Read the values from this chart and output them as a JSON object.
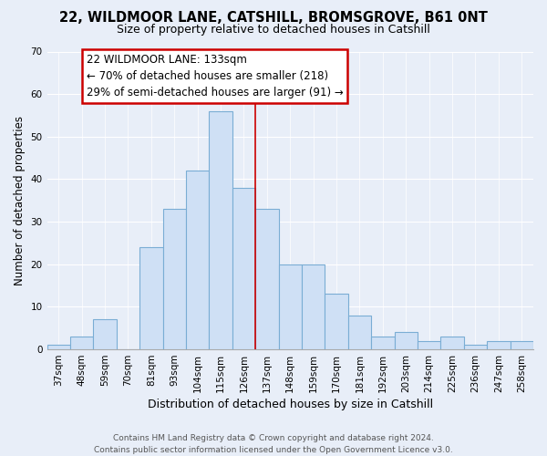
{
  "title1": "22, WILDMOOR LANE, CATSHILL, BROMSGROVE, B61 0NT",
  "title2": "Size of property relative to detached houses in Catshill",
  "xlabel": "Distribution of detached houses by size in Catshill",
  "ylabel": "Number of detached properties",
  "bin_labels": [
    "37sqm",
    "48sqm",
    "59sqm",
    "70sqm",
    "81sqm",
    "93sqm",
    "104sqm",
    "115sqm",
    "126sqm",
    "137sqm",
    "148sqm",
    "159sqm",
    "170sqm",
    "181sqm",
    "192sqm",
    "203sqm",
    "214sqm",
    "225sqm",
    "236sqm",
    "247sqm",
    "258sqm"
  ],
  "bar_heights": [
    1,
    3,
    7,
    0,
    24,
    33,
    42,
    56,
    38,
    33,
    20,
    20,
    13,
    8,
    3,
    4,
    2,
    3,
    1,
    2,
    2
  ],
  "bar_color": "#cfe0f5",
  "bar_edge_color": "#7aadd4",
  "vline_color": "#cc0000",
  "vline_x": 8.5,
  "annotation_title": "22 WILDMOOR LANE: 133sqm",
  "annotation_line1": "← 70% of detached houses are smaller (218)",
  "annotation_line2": "29% of semi-detached houses are larger (91) →",
  "annotation_box_facecolor": "#ffffff",
  "annotation_box_edgecolor": "#cc0000",
  "ylim": [
    0,
    70
  ],
  "yticks": [
    0,
    10,
    20,
    30,
    40,
    50,
    60,
    70
  ],
  "footnote1": "Contains HM Land Registry data © Crown copyright and database right 2024.",
  "footnote2": "Contains public sector information licensed under the Open Government Licence v3.0.",
  "bg_color": "#e8eef8",
  "plot_bg_color": "#e8eef8",
  "grid_color": "#ffffff",
  "title1_fontsize": 10.5,
  "title2_fontsize": 9,
  "ylabel_fontsize": 8.5,
  "xlabel_fontsize": 9,
  "tick_fontsize": 7.5,
  "footnote_fontsize": 6.5,
  "ann_fontsize": 8.5
}
